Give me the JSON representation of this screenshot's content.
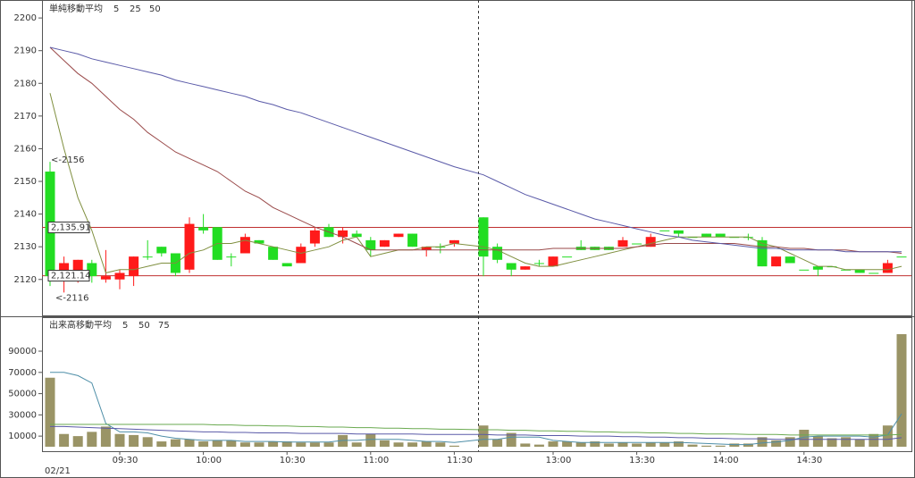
{
  "chart_data": [
    {
      "type": "candlestick",
      "legend_title": "単純移動平均",
      "up_color": "#ff1a1a",
      "down_color": "#22dd22",
      "open": [
        2153,
        2120,
        2122,
        2125,
        2120,
        2120,
        2121,
        2127,
        2130,
        2128,
        2123,
        2136,
        2136,
        2127,
        2128,
        2132,
        2130,
        2125,
        2125,
        2131,
        2136,
        2133,
        2134,
        2132,
        2130,
        2133,
        2134,
        2129,
        2130,
        2131,
        2139,
        2130,
        2125,
        2123,
        2125,
        2124,
        2127,
        2130,
        2130,
        2130,
        2130,
        2131,
        2130,
        2135,
        2135,
        2133,
        2134,
        2134,
        2133,
        2133,
        2132,
        2124,
        2127,
        2123,
        2124,
        2124,
        2123,
        2123,
        2122,
        2122,
        2127
      ],
      "high": [
        2156,
        2127,
        2126,
        2126,
        2129,
        2123,
        2127,
        2132,
        2130,
        2128,
        2139,
        2140,
        2136,
        2128,
        2134,
        2132,
        2130,
        2125,
        2131,
        2136,
        2137,
        2136,
        2135,
        2133,
        2132,
        2134,
        2134,
        2130,
        2131,
        2132,
        2139,
        2131,
        2125,
        2124,
        2126,
        2127,
        2127,
        2132,
        2130,
        2130,
        2133,
        2131,
        2134,
        2135,
        2135,
        2133,
        2134,
        2134,
        2133,
        2134,
        2133,
        2127,
        2127,
        2123,
        2124,
        2124,
        2123,
        2123,
        2122,
        2126,
        2127
      ],
      "low": [
        2118,
        2116,
        2119,
        2119,
        2119,
        2117,
        2118,
        2126,
        2127,
        2121,
        2122,
        2134,
        2126,
        2124,
        2128,
        2131,
        2126,
        2124,
        2125,
        2130,
        2133,
        2131,
        2133,
        2127,
        2130,
        2133,
        2130,
        2127,
        2128,
        2130,
        2121,
        2125,
        2121,
        2123,
        2124,
        2124,
        2127,
        2129,
        2129,
        2129,
        2130,
        2131,
        2130,
        2135,
        2133,
        2133,
        2133,
        2133,
        2133,
        2132,
        2124,
        2124,
        2125,
        2123,
        2121,
        2124,
        2123,
        2122,
        2122,
        2122,
        2127
      ],
      "close": [
        2121,
        2125,
        2126,
        2121,
        2121,
        2122,
        2127,
        2127,
        2128,
        2122,
        2137,
        2135,
        2126,
        2127,
        2133,
        2131,
        2126,
        2124,
        2130,
        2135,
        2133,
        2135,
        2133,
        2129,
        2132,
        2134,
        2130,
        2130,
        2130,
        2132,
        2127,
        2126,
        2123,
        2124,
        2125,
        2127,
        2127,
        2129,
        2129,
        2129,
        2132,
        2131,
        2133,
        2135,
        2134,
        2133,
        2133,
        2133,
        2133,
        2133,
        2124,
        2127,
        2125,
        2123,
        2123,
        2124,
        2123,
        2122,
        2122,
        2125,
        2127
      ],
      "series": [
        {
          "name": "5",
          "color": "#7f8f3f",
          "values": [
            2177,
            2160,
            2145,
            2135,
            2122,
            2123,
            2123,
            2124,
            2125,
            2125,
            2128,
            2129,
            2131,
            2131,
            2132,
            2131,
            2130,
            2129,
            2128,
            2129,
            2130,
            2132,
            2133,
            2127,
            2128,
            2129,
            2129,
            2130,
            2130,
            2131,
            2130,
            2129,
            2127,
            2125,
            2124,
            2124,
            2125,
            2126,
            2127,
            2128,
            2129,
            2130,
            2131,
            2132,
            2133,
            2133,
            2133,
            2133,
            2133,
            2133,
            2131,
            2130,
            2128,
            2126,
            2124,
            2124,
            2123,
            2123,
            2123,
            2123,
            2124
          ]
        },
        {
          "name": "25",
          "color": "#9a4a4a",
          "values": [
            2191,
            2187,
            2183,
            2180,
            2176,
            2172,
            2169,
            2165,
            2162,
            2159,
            2157,
            2155,
            2153,
            2150,
            2147,
            2145,
            2142,
            2140,
            2138,
            2136,
            2134.5,
            2133,
            2131,
            2129,
            2129,
            2129,
            2129,
            2129,
            2129,
            2129,
            2129,
            2129,
            2129,
            2129,
            2129,
            2129.5,
            2129.5,
            2129.5,
            2129.5,
            2129.5,
            2129.5,
            2130,
            2130.5,
            2131,
            2131,
            2131,
            2131,
            2131,
            2131,
            2130.5,
            2130,
            2130,
            2129.5,
            2129.5,
            2129,
            2129,
            2129,
            2128.5,
            2128.5,
            2128.5,
            2128
          ]
        },
        {
          "name": "50",
          "color": "#5a5aa8",
          "values": [
            2191,
            2190,
            2189,
            2187.5,
            2186.5,
            2185.5,
            2184.5,
            2183.5,
            2182.5,
            2181,
            2180,
            2179,
            2178,
            2177,
            2176,
            2174.5,
            2173.5,
            2172,
            2171,
            2169.5,
            2168,
            2166.5,
            2165,
            2163.5,
            2162,
            2160.5,
            2159,
            2157.5,
            2156,
            2154.5,
            2152,
            2150,
            2148,
            2146,
            2144.5,
            2143,
            2141.5,
            2140,
            2138.5,
            2137.5,
            2136.5,
            2135.5,
            2134.5,
            2133.5,
            2133,
            2132,
            2131.5,
            2131,
            2130.5,
            2130,
            2129.5,
            2129.5,
            2129,
            2129,
            2129,
            2129,
            2128.5,
            2128.5,
            2128.5,
            2128.5,
            2128.5
          ]
        }
      ],
      "hlines": [
        {
          "value": 2135.91,
          "label": "2,135.91",
          "color": "#c03030"
        },
        {
          "value": 2121.14,
          "label": "2,121.14",
          "color": "#c03030"
        }
      ],
      "annotations": [
        {
          "value": 2156,
          "label": "<-2156",
          "color": "#e03030"
        },
        {
          "value": 2116,
          "label": "<-2116",
          "color": "#22aa22"
        }
      ],
      "ylim": [
        2109,
        2205.5
      ],
      "yticks": [
        2120,
        2130,
        2140,
        2150,
        2160,
        2170,
        2180,
        2190,
        2200
      ]
    },
    {
      "type": "bar",
      "legend_title": "出来高移動平均",
      "color": "#9a9466",
      "date": "02/21",
      "categories": [
        null,
        null,
        null,
        null,
        null,
        "09:30",
        null,
        null,
        null,
        null,
        null,
        "10:00",
        null,
        null,
        null,
        null,
        null,
        "10:30",
        null,
        null,
        null,
        null,
        null,
        "11:00",
        null,
        null,
        null,
        null,
        null,
        "11:30",
        null,
        null,
        null,
        null,
        null,
        "13:00",
        null,
        null,
        null,
        null,
        null,
        "13:30",
        null,
        null,
        null,
        null,
        null,
        "14:00",
        null,
        null,
        null,
        null,
        null,
        "14:30",
        null,
        null,
        null,
        null,
        null,
        null,
        null
      ],
      "values": [
        65000,
        12000,
        10000,
        14000,
        19000,
        12000,
        11000,
        9000,
        5000,
        7000,
        7000,
        5000,
        6000,
        6000,
        4000,
        4000,
        5000,
        5000,
        4000,
        4000,
        4000,
        11000,
        4000,
        12000,
        6000,
        4000,
        4000,
        5000,
        4000,
        1000,
        20000,
        7000,
        13000,
        3000,
        2000,
        5000,
        5000,
        4000,
        5000,
        3000,
        4000,
        3000,
        4000,
        4000,
        5000,
        2000,
        1000,
        1000,
        3000,
        3000,
        9000,
        6000,
        9000,
        16000,
        10000,
        8000,
        9000,
        7000,
        12000,
        20000,
        106000
      ],
      "series": [
        {
          "name": "5",
          "color": "#4f8fa8",
          "values": [
            70000,
            70000,
            67000,
            60000,
            22000,
            14000,
            14000,
            13000,
            10000,
            8000,
            7000,
            6000,
            6000,
            6000,
            5000,
            5000,
            5000,
            4500,
            4500,
            4500,
            4500,
            6000,
            6000,
            7000,
            7000,
            7000,
            6000,
            5000,
            5000,
            4000,
            7000,
            7000,
            9000,
            9000,
            9000,
            6000,
            5000,
            4000,
            4000,
            4000,
            4000,
            4000,
            4000,
            4000,
            4000,
            3500,
            3000,
            2500,
            2000,
            2000,
            3500,
            4500,
            6000,
            9000,
            10000,
            10000,
            10000,
            10000,
            9000,
            11000,
            31000
          ]
        },
        {
          "name": "50",
          "color": "#5a5aa8",
          "values": [
            19000,
            19000,
            18500,
            18000,
            17500,
            17000,
            16500,
            16000,
            15500,
            15000,
            14500,
            14000,
            14000,
            13500,
            13500,
            13000,
            13000,
            13000,
            12500,
            12500,
            12500,
            12500,
            12000,
            12000,
            12000,
            12000,
            12000,
            11500,
            11500,
            11500,
            11500,
            11000,
            11000,
            11000,
            10500,
            10500,
            10500,
            10000,
            10000,
            10000,
            9500,
            9500,
            9000,
            9000,
            8500,
            8500,
            8000,
            8000,
            7500,
            7500,
            7500,
            7000,
            7000,
            7000,
            7000,
            7000,
            7000,
            7000,
            7000,
            7000,
            8500
          ]
        },
        {
          "name": "75",
          "color": "#6aaa50",
          "values": [
            21000,
            21000,
            21000,
            21000,
            21000,
            21000,
            21000,
            21000,
            21000,
            21000,
            21000,
            21000,
            20500,
            20500,
            20000,
            20000,
            19500,
            19500,
            19000,
            19000,
            18500,
            18500,
            18000,
            18000,
            17500,
            17500,
            17000,
            17000,
            16500,
            16500,
            16000,
            16000,
            15500,
            15500,
            15000,
            15000,
            14500,
            14500,
            14000,
            14000,
            13500,
            13500,
            13000,
            13000,
            12500,
            12500,
            12000,
            12000,
            12000,
            11500,
            11500,
            11500,
            11000,
            11000,
            11000,
            11000,
            11000,
            11000,
            11000,
            11000,
            11500
          ]
        }
      ],
      "ylim": [
        0,
        122000
      ],
      "yticks": [
        10000,
        30000,
        50000,
        70000,
        90000
      ]
    }
  ]
}
